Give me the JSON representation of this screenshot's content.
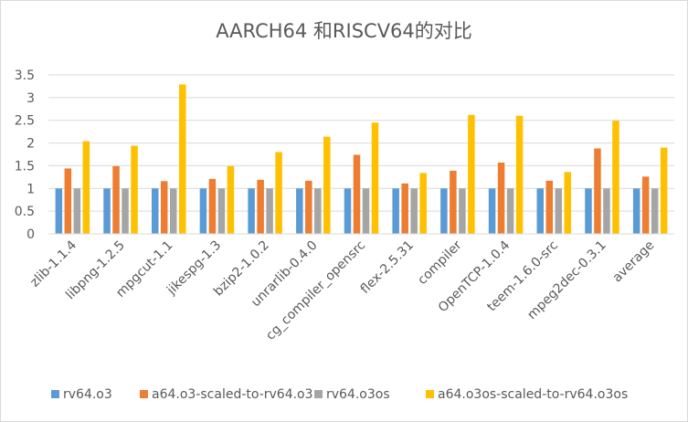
{
  "chart_data": {
    "type": "bar",
    "title": "AARCH64 和RISCV64的对比",
    "categories": [
      "zlib-1.1.4",
      "libpng-1.2.5",
      "mpgcut-1.1",
      "jikespg-1.3",
      "bzip2-1.0.2",
      "unrarlib-0.4.0",
      "cg_compiler_opensrc",
      "flex-2.5.31",
      "compiler",
      "OpenTCP-1.0.4",
      "teem-1.6.0-src",
      "mpeg2dec-0.3.1",
      "average"
    ],
    "series": [
      {
        "name": "rv64.o3",
        "color": "#5b9bd5",
        "values": [
          1,
          1,
          1,
          1,
          1,
          1,
          1,
          1,
          1,
          1,
          1,
          1,
          1
        ]
      },
      {
        "name": "a64.o3-scaled-to-rv64.o3",
        "color": "#ed7d31",
        "values": [
          1.44,
          1.49,
          1.16,
          1.21,
          1.19,
          1.17,
          1.74,
          1.11,
          1.39,
          1.57,
          1.17,
          1.88,
          1.26
        ]
      },
      {
        "name": "rv64.o3os",
        "color": "#a5a5a5",
        "values": [
          1,
          1,
          1,
          1,
          1,
          1,
          1,
          1,
          1,
          1,
          1,
          1,
          1
        ]
      },
      {
        "name": "a64.o3os-scaled-to-rv64.o3os",
        "color": "#ffc000",
        "values": [
          2.04,
          1.94,
          3.29,
          1.49,
          1.8,
          2.14,
          2.45,
          1.34,
          2.62,
          2.6,
          1.36,
          2.49,
          1.9
        ]
      }
    ],
    "ylim": [
      0,
      3.5
    ],
    "yticks": [
      "0",
      "0.5",
      "1",
      "1.5",
      "2",
      "2.5",
      "3",
      "3.5"
    ],
    "grid": true,
    "legend": "bottom"
  }
}
